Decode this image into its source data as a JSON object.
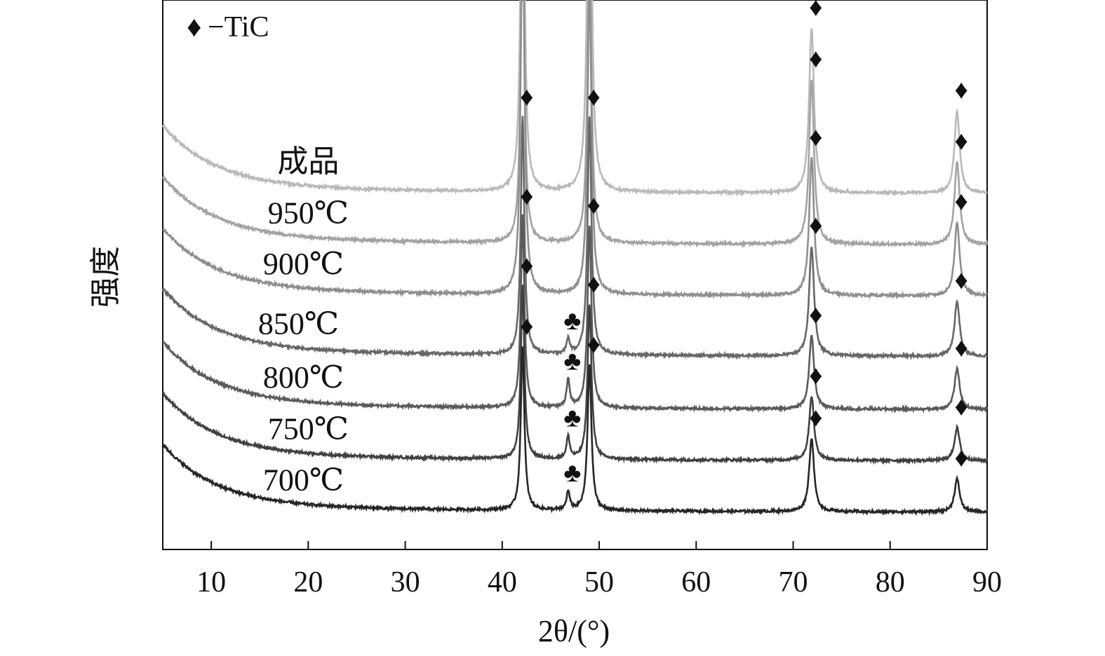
{
  "chart_data": {
    "type": "line",
    "title": "",
    "xlabel": "2θ/(°)",
    "ylabel": "强度",
    "xlim": [
      5,
      90
    ],
    "x_ticks": [
      10,
      20,
      30,
      40,
      50,
      60,
      70,
      80,
      90
    ],
    "y_ticks_shown": false,
    "grid": false,
    "legend": {
      "position": "top-left",
      "entries": [
        {
          "symbol": "♦",
          "text": "−TiC"
        }
      ]
    },
    "tic_peaks_2theta": [
      42.1,
      49.0,
      71.9,
      86.9
    ],
    "secondary_peak_2theta": 46.8,
    "series": [
      {
        "name": "成品",
        "color": "#b9b9b9",
        "label_2theta": 20,
        "baseline": 1.94,
        "peak_heights": [
          2.35,
          2.5,
          0.9,
          0.45
        ],
        "secondary_height": 0
      },
      {
        "name": "950℃",
        "color": "#a3a3a3",
        "label_2theta": 20,
        "baseline": 1.66,
        "peak_heights": [
          1.85,
          1.7,
          0.9,
          0.45
        ],
        "secondary_height": 0
      },
      {
        "name": "900℃",
        "color": "#8e8e8e",
        "label_2theta": 19.5,
        "baseline": 1.38,
        "peak_heights": [
          2.2,
          1.7,
          0.75,
          0.4
        ],
        "secondary_height": 0
      },
      {
        "name": "850℃",
        "color": "#676767",
        "label_2theta": 19,
        "baseline": 1.05,
        "peak_heights": [
          1.3,
          1.3,
          0.6,
          0.3
        ],
        "secondary_height": 0.08
      },
      {
        "name": "800℃",
        "color": "#5a5a5a",
        "label_2theta": 19.5,
        "baseline": 0.76,
        "peak_heights": [
          1.05,
          1.0,
          0.4,
          0.22
        ],
        "secondary_height": 0.15
      },
      {
        "name": "750℃",
        "color": "#404040",
        "label_2theta": 20,
        "baseline": 0.48,
        "peak_heights": [
          0.95,
          0.85,
          0.35,
          0.18
        ],
        "secondary_height": 0.12
      },
      {
        "name": "700℃",
        "color": "#262626",
        "label_2theta": 19.5,
        "baseline": 0.2,
        "peak_heights": [
          0.9,
          0.8,
          0.4,
          0.18
        ],
        "secondary_height": 0.1
      }
    ],
    "marker_symbols": {
      "tic": "♦",
      "secondary": "♣"
    },
    "colors": {
      "axis": "#111111",
      "marker": "#111111"
    }
  }
}
